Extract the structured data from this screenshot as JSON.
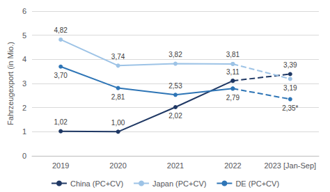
{
  "chart_data": {
    "type": "line",
    "categories": [
      "2019",
      "2020",
      "2021",
      "2022",
      "2023 [Jan-Sep]"
    ],
    "series": [
      {
        "name": "China (PC+CV)",
        "color": "#1f3864",
        "marker": "circle",
        "values": [
          1.02,
          1.0,
          2.02,
          3.11,
          3.39
        ],
        "value_labels": [
          "1,02",
          "1,00",
          "2,02",
          "3,11",
          "3,39"
        ]
      },
      {
        "name": "Japan (PC+CV)",
        "color": "#9dc3e6",
        "marker": "circle",
        "values": [
          4.82,
          3.74,
          3.82,
          3.81,
          3.19
        ],
        "value_labels": [
          "4,82",
          "3,74",
          "3,82",
          "3,81",
          "3,19"
        ]
      },
      {
        "name": "DE (PC+CV)",
        "color": "#2e75b6",
        "marker": "circle",
        "values": [
          3.7,
          2.81,
          2.53,
          2.79,
          2.35
        ],
        "value_labels": [
          "3,70",
          "2,81",
          "2,53",
          "2,79",
          "2,35*"
        ]
      }
    ],
    "y_label": "Fahrzeugexport (in Mio.)",
    "ylim": [
      0,
      6
    ],
    "yticks": [
      0,
      1,
      2,
      3,
      4,
      5,
      6
    ],
    "grid": true,
    "legend": "bottom",
    "data_labels": true
  }
}
